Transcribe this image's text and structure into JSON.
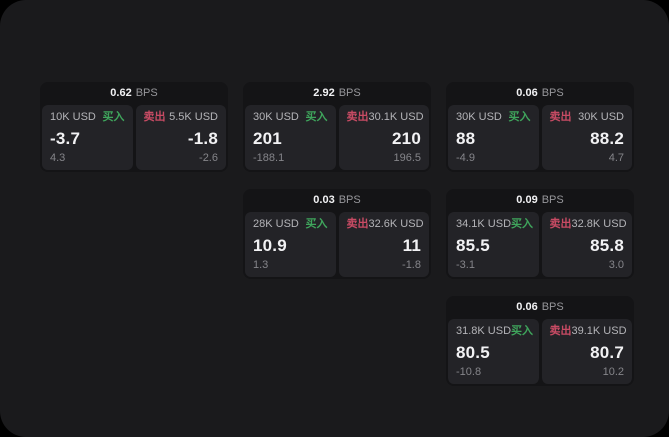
{
  "theme": {
    "outer_background": "#000000",
    "page_background": "#1a1a1c",
    "card_background": "#141416",
    "panel_background": "#232327",
    "text_primary": "#f2f2f4",
    "text_secondary": "#b4b4b8",
    "text_muted": "#85858a",
    "buy_color": "#3fa55c",
    "sell_color": "#c84b64"
  },
  "labels": {
    "buy": "买入",
    "sell": "卖出",
    "bps_unit": "BPS"
  },
  "cards": [
    {
      "bps": "0.62",
      "grid": {
        "row": 1,
        "col": 1
      },
      "buy": {
        "amount": "10K USD",
        "value": "-3.7",
        "sub": "4.3"
      },
      "sell": {
        "amount": "5.5K USD",
        "value": "-1.8",
        "sub": "-2.6"
      }
    },
    {
      "bps": "2.92",
      "grid": {
        "row": 1,
        "col": 2
      },
      "buy": {
        "amount": "30K USD",
        "value": "201",
        "sub": "-188.1"
      },
      "sell": {
        "amount": "30.1K USD",
        "value": "210",
        "sub": "196.5"
      }
    },
    {
      "bps": "0.06",
      "grid": {
        "row": 1,
        "col": 3
      },
      "buy": {
        "amount": "30K USD",
        "value": "88",
        "sub": "-4.9"
      },
      "sell": {
        "amount": "30K USD",
        "value": "88.2",
        "sub": "4.7"
      }
    },
    {
      "bps": "0.03",
      "grid": {
        "row": 2,
        "col": 2
      },
      "buy": {
        "amount": "28K USD",
        "value": "10.9",
        "sub": "1.3"
      },
      "sell": {
        "amount": "32.6K USD",
        "value": "11",
        "sub": "-1.8"
      }
    },
    {
      "bps": "0.09",
      "grid": {
        "row": 2,
        "col": 3
      },
      "buy": {
        "amount": "34.1K USD",
        "value": "85.5",
        "sub": "-3.1"
      },
      "sell": {
        "amount": "32.8K USD",
        "value": "85.8",
        "sub": "3.0"
      }
    },
    {
      "bps": "0.06",
      "grid": {
        "row": 3,
        "col": 3
      },
      "buy": {
        "amount": "31.8K USD",
        "value": "80.5",
        "sub": "-10.8"
      },
      "sell": {
        "amount": "39.1K USD",
        "value": "80.7",
        "sub": "10.2"
      }
    }
  ]
}
